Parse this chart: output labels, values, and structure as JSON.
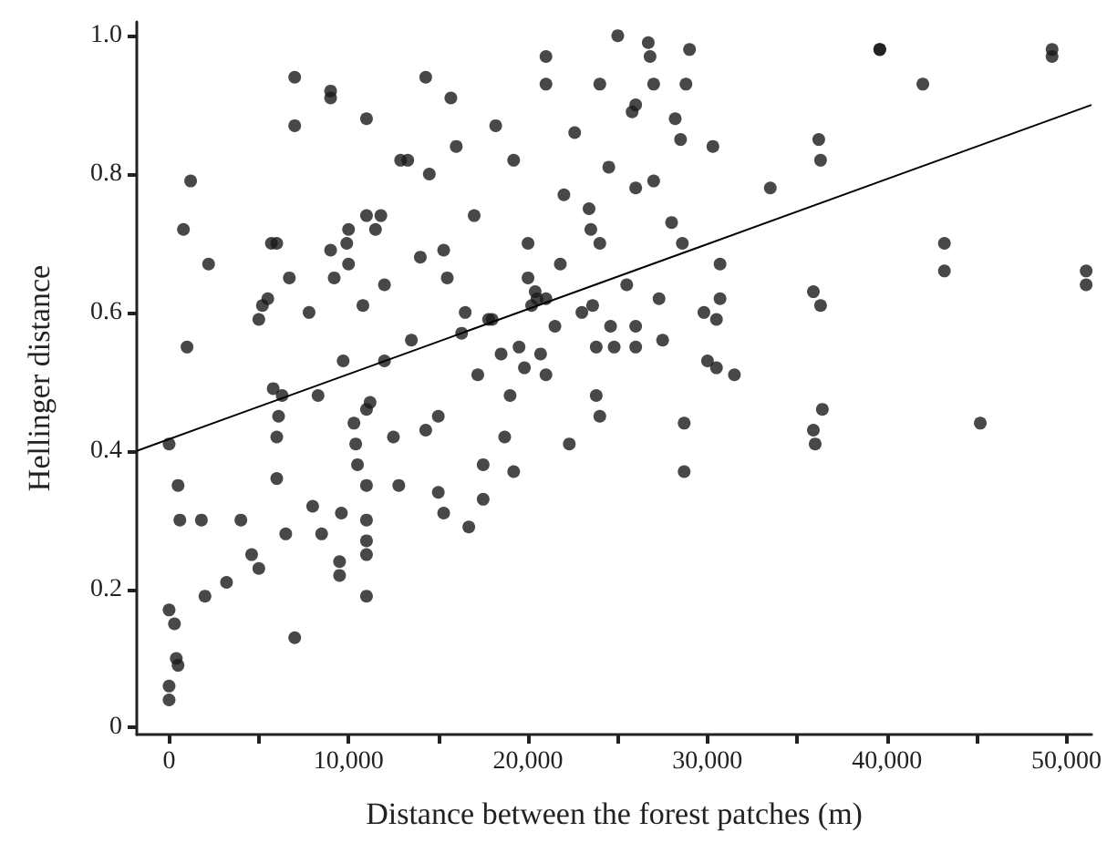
{
  "chart_data": {
    "type": "scatter",
    "xlabel": "Distance between the forest patches (m)",
    "ylabel": "Hellinger distance",
    "xlim": [
      -1800,
      51400
    ],
    "ylim": [
      -0.01,
      1.02
    ],
    "xticks": [
      {
        "value": 0,
        "label": "0"
      },
      {
        "value": 5000,
        "label": null
      },
      {
        "value": 10000,
        "label": "10,000"
      },
      {
        "value": 15000,
        "label": null
      },
      {
        "value": 20000,
        "label": "20,000"
      },
      {
        "value": 25000,
        "label": null
      },
      {
        "value": 30000,
        "label": "30,000"
      },
      {
        "value": 35000,
        "label": null
      },
      {
        "value": 40000,
        "label": "40,000"
      },
      {
        "value": 45000,
        "label": null
      },
      {
        "value": 50000,
        "label": "50,000"
      }
    ],
    "yticks": [
      0,
      0.2,
      0.4,
      0.6,
      0.8,
      {
        "value": 1,
        "label": "1.0"
      }
    ],
    "grid": false,
    "series": [
      {
        "color": "#1a1a1a",
        "marker": "circle",
        "x": [
          0,
          0,
          300,
          400,
          500,
          0,
          0,
          500,
          600,
          800,
          1000,
          1200,
          1800,
          2000,
          2200,
          3200,
          4000,
          4600,
          5000,
          5000,
          5200,
          5500,
          5700,
          6000,
          5800,
          6000,
          6000,
          6100,
          6300,
          6500,
          6700,
          7000,
          7000,
          7000,
          7800,
          8300,
          8000,
          8500,
          9000,
          9000,
          9000,
          9200,
          9500,
          9500,
          9600,
          9700,
          9900,
          10000,
          10000,
          10300,
          10400,
          10500,
          10800,
          11000,
          11000,
          11000,
          11000,
          11000,
          11000,
          11000,
          11000,
          11200,
          11500,
          11800,
          12000,
          12000,
          12500,
          12800,
          12900,
          13300,
          13500,
          14000,
          14300,
          14300,
          14500,
          15000,
          15000,
          15300,
          15300,
          15500,
          15700,
          16000,
          16300,
          16500,
          16700,
          17000,
          17200,
          17500,
          17500,
          17800,
          18000,
          18200,
          18500,
          18700,
          19000,
          19200,
          19200,
          19500,
          19800,
          20000,
          20000,
          20200,
          20400,
          20500,
          20700,
          21000,
          21000,
          21000,
          21000,
          21500,
          21800,
          22000,
          22300,
          22600,
          23000,
          23400,
          23500,
          23600,
          23800,
          23800,
          24000,
          24000,
          24000,
          24500,
          24600,
          24800,
          25000,
          25500,
          25800,
          26000,
          26000,
          26000,
          26000,
          26700,
          26800,
          27000,
          27000,
          27300,
          27500,
          28000,
          28200,
          28500,
          28600,
          28700,
          28700,
          28800,
          29000,
          29800,
          30000,
          30300,
          30500,
          30500,
          30700,
          30700,
          31500,
          33500,
          35900,
          35900,
          36000,
          36200,
          36300,
          36300,
          36400,
          39600,
          39600,
          42000,
          43200,
          43200,
          45200,
          49200,
          49200,
          51100,
          51100
        ],
        "values": [
          0.41,
          0.17,
          0.15,
          0.1,
          0.09,
          0.06,
          0.04,
          0.35,
          0.3,
          0.72,
          0.55,
          0.79,
          0.3,
          0.19,
          0.67,
          0.21,
          0.3,
          0.25,
          0.23,
          0.59,
          0.61,
          0.62,
          0.7,
          0.7,
          0.49,
          0.36,
          0.42,
          0.45,
          0.48,
          0.28,
          0.65,
          0.94,
          0.87,
          0.13,
          0.6,
          0.48,
          0.32,
          0.28,
          0.92,
          0.91,
          0.69,
          0.65,
          0.24,
          0.22,
          0.31,
          0.53,
          0.7,
          0.72,
          0.67,
          0.44,
          0.41,
          0.38,
          0.61,
          0.88,
          0.74,
          0.46,
          0.35,
          0.3,
          0.27,
          0.25,
          0.19,
          0.47,
          0.72,
          0.74,
          0.64,
          0.53,
          0.42,
          0.35,
          0.82,
          0.82,
          0.56,
          0.68,
          0.43,
          0.94,
          0.8,
          0.45,
          0.34,
          0.31,
          0.69,
          0.65,
          0.91,
          0.84,
          0.57,
          0.6,
          0.29,
          0.74,
          0.51,
          0.38,
          0.33,
          0.59,
          0.59,
          0.87,
          0.54,
          0.42,
          0.48,
          0.82,
          0.37,
          0.55,
          0.52,
          0.7,
          0.65,
          0.61,
          0.63,
          0.62,
          0.54,
          0.97,
          0.93,
          0.51,
          0.62,
          0.58,
          0.67,
          0.77,
          0.41,
          0.86,
          0.6,
          0.75,
          0.72,
          0.61,
          0.55,
          0.48,
          0.93,
          0.7,
          0.45,
          0.81,
          0.58,
          0.55,
          1.0,
          0.64,
          0.89,
          0.9,
          0.78,
          0.58,
          0.55,
          0.99,
          0.97,
          0.93,
          0.79,
          0.62,
          0.56,
          0.73,
          0.88,
          0.85,
          0.7,
          0.44,
          0.37,
          0.93,
          0.98,
          0.6,
          0.53,
          0.84,
          0.59,
          0.52,
          0.62,
          0.67,
          0.51,
          0.78,
          0.63,
          0.43,
          0.41,
          0.85,
          0.82,
          0.61,
          0.46,
          0.98,
          0.98,
          0.93,
          0.7,
          0.66,
          0.44,
          0.98,
          0.97,
          0.66,
          0.64
        ]
      },
      {
        "type": "line",
        "color": "#000000",
        "marker": "none",
        "x": [
          -1800,
          51400
        ],
        "values": [
          0.4,
          0.9
        ]
      }
    ]
  }
}
